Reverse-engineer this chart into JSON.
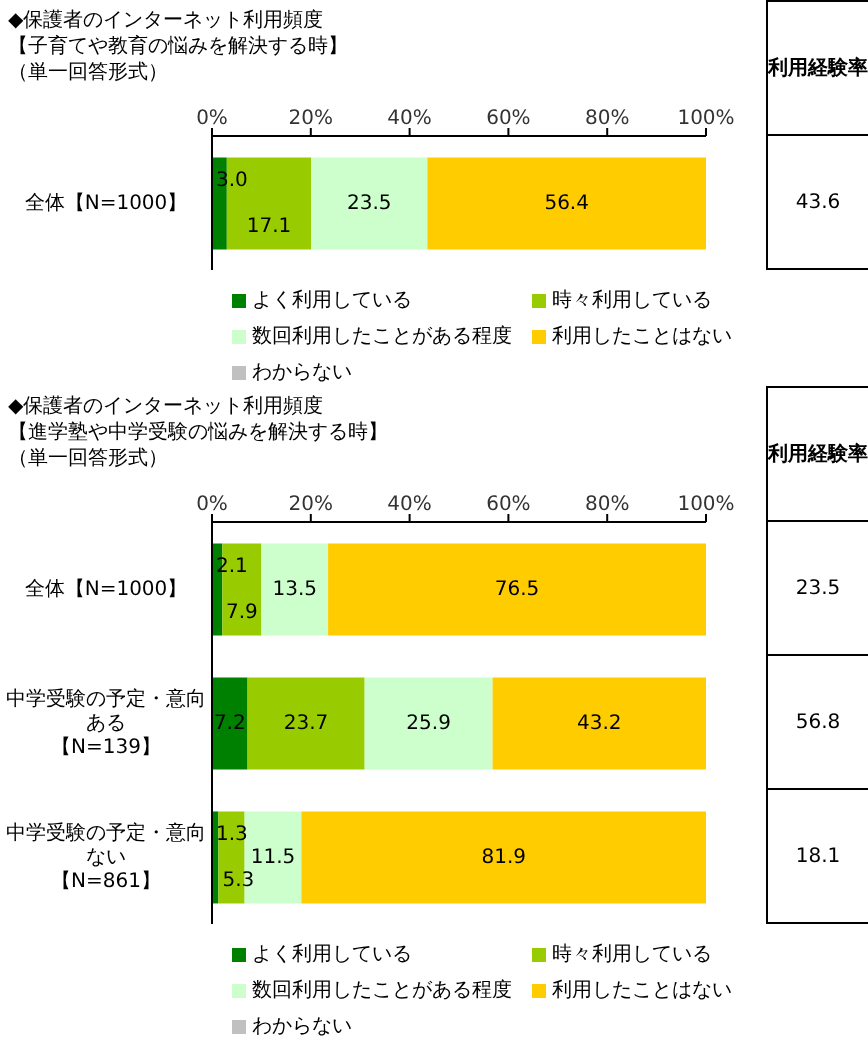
{
  "chart_data": [
    {
      "type": "bar",
      "orientation": "horizontal",
      "stacked": true,
      "title": "◆保護者のインターネット利用頻度",
      "subtitle": "【子育てや教育の悩みを解決する時】",
      "annotations": [
        "（単一回答形式）",
        "利用経験率",
        "43.6"
      ],
      "categories": [
        "全体【N=1000】"
      ],
      "series": [
        {
          "name": "よく利用している",
          "color": "#008000",
          "values": [
            3.0
          ],
          "value_labels": [
            "3.0"
          ]
        },
        {
          "name": "時々利用している",
          "color": "#99cc00",
          "values": [
            17.1
          ],
          "value_labels": [
            "17.1"
          ]
        },
        {
          "name": "数回利用したことがある程度",
          "color": "#ccffcc",
          "values": [
            23.5
          ],
          "value_labels": [
            "23.5"
          ]
        },
        {
          "name": "利用したことはない",
          "color": "#ffcc00",
          "values": [
            56.4
          ],
          "value_labels": [
            "56.4"
          ]
        },
        {
          "name": "わからない",
          "color": "#c0c0c0",
          "values": [
            null
          ],
          "value_labels": [
            null
          ]
        }
      ],
      "xlim": [
        0,
        100
      ],
      "xticks": [
        {
          "value": 0,
          "label": "0%"
        },
        {
          "value": 20,
          "label": "20%"
        },
        {
          "value": 40,
          "label": "40%"
        },
        {
          "value": 60,
          "label": "60%"
        },
        {
          "value": 80,
          "label": "80%"
        },
        {
          "value": 100,
          "label": "100%"
        }
      ],
      "legend": "bottom",
      "grid": false
    },
    {
      "type": "bar",
      "orientation": "horizontal",
      "stacked": true,
      "title": "◆保護者のインターネット利用頻度",
      "subtitle": "【進学塾や中学受験の悩みを解決する時】",
      "annotations": [
        "（単一回答形式）",
        "利用経験率",
        "23.5",
        "56.8",
        "18.1"
      ],
      "categories": [
        "全体【N=1000】",
        "中学受験の予定・意向ある【N=139】",
        "中学受験の予定・意向ない【N=861】"
      ],
      "series": [
        {
          "name": "よく利用している",
          "color": "#008000",
          "values": [
            2.1,
            7.2,
            1.3
          ],
          "value_labels": [
            "2.1",
            "7.2",
            "1.3"
          ]
        },
        {
          "name": "時々利用している",
          "color": "#99cc00",
          "values": [
            7.9,
            23.7,
            5.3
          ],
          "value_labels": [
            "7.9",
            "23.7",
            "5.3"
          ]
        },
        {
          "name": "数回利用したことがある程度",
          "color": "#ccffcc",
          "values": [
            13.5,
            25.9,
            11.5
          ],
          "value_labels": [
            "13.5",
            "25.9",
            "11.5"
          ]
        },
        {
          "name": "利用したことはない",
          "color": "#ffcc00",
          "values": [
            76.5,
            43.2,
            81.9
          ],
          "value_labels": [
            "76.5",
            "43.2",
            "81.9"
          ]
        },
        {
          "name": "わからない",
          "color": "#c0c0c0",
          "values": [
            null,
            null,
            null
          ],
          "value_labels": [
            null,
            null,
            null
          ]
        }
      ],
      "xlim": [
        0,
        100
      ],
      "xticks": [
        {
          "value": 0,
          "label": "0%"
        },
        {
          "value": 20,
          "label": "20%"
        },
        {
          "value": 40,
          "label": "40%"
        },
        {
          "value": 60,
          "label": "60%"
        },
        {
          "value": 80,
          "label": "80%"
        },
        {
          "value": 100,
          "label": "100%"
        }
      ],
      "legend": "bottom",
      "grid": false
    }
  ]
}
